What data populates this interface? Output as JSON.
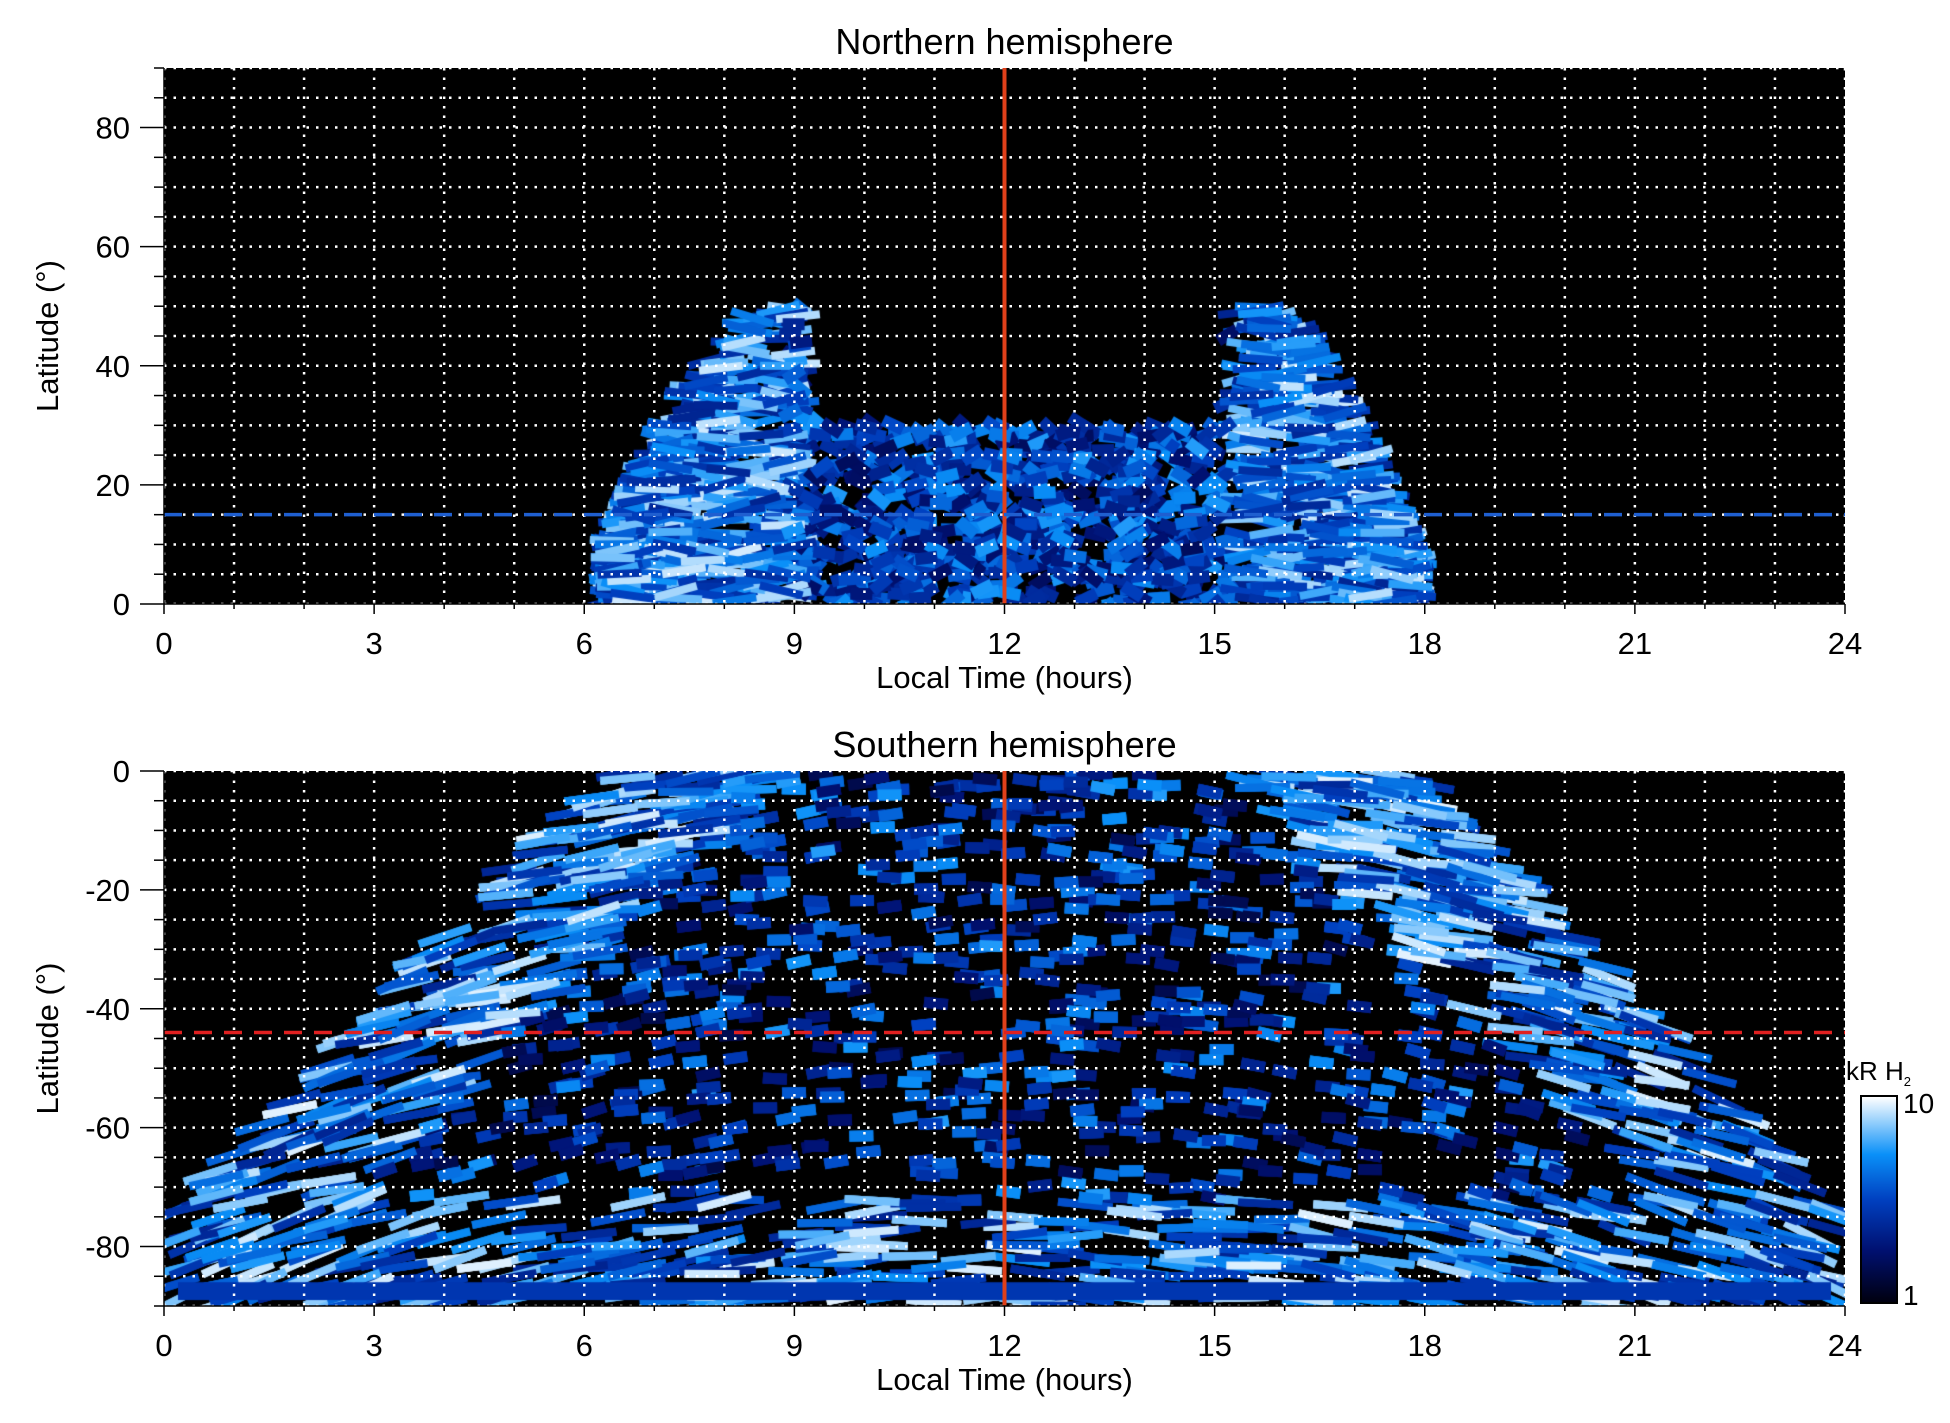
{
  "chart_data": [
    {
      "type": "heatmap",
      "title": "Northern hemisphere",
      "xlabel": "Local Time (hours)",
      "ylabel": "Latitude (°)",
      "xlim": [
        0,
        24
      ],
      "ylim": [
        0,
        90
      ],
      "xticks": [
        "0",
        "3",
        "6",
        "9",
        "12",
        "15",
        "18",
        "21",
        "24"
      ],
      "yticks": [
        "0",
        "20",
        "40",
        "60",
        "80"
      ],
      "grid": true,
      "emission_extent_lt": [
        6.3,
        17.8
      ],
      "emission_max_latitude": 50,
      "reference_lines": [
        {
          "orientation": "vertical",
          "value": 12,
          "color": "#e0401a",
          "style": "solid"
        },
        {
          "orientation": "horizontal",
          "value": 15,
          "color": "#1f5fd0",
          "style": "dashed"
        }
      ]
    },
    {
      "type": "heatmap",
      "title": "Southern hemisphere",
      "xlabel": "Local Time (hours)",
      "ylabel": "Latitude (°)",
      "xlim": [
        0,
        24
      ],
      "ylim": [
        -90,
        0
      ],
      "xticks": [
        "0",
        "3",
        "6",
        "9",
        "12",
        "15",
        "18",
        "21",
        "24"
      ],
      "yticks": [
        "0",
        "-20",
        "-40",
        "-60",
        "-80"
      ],
      "grid": true,
      "reference_lines": [
        {
          "orientation": "vertical",
          "value": 12,
          "color": "#e0401a",
          "style": "solid"
        },
        {
          "orientation": "horizontal",
          "value": -44,
          "color": "#e02020",
          "style": "dashed"
        }
      ]
    }
  ],
  "colorbar": {
    "label_main": "kR H",
    "label_sub": "2",
    "min_label": "1",
    "max_label": "10",
    "range": [
      1,
      10
    ],
    "scale": "log",
    "colors": [
      "#000010",
      "#001a80",
      "#0050d0",
      "#0a90f8",
      "#ffffff"
    ]
  }
}
